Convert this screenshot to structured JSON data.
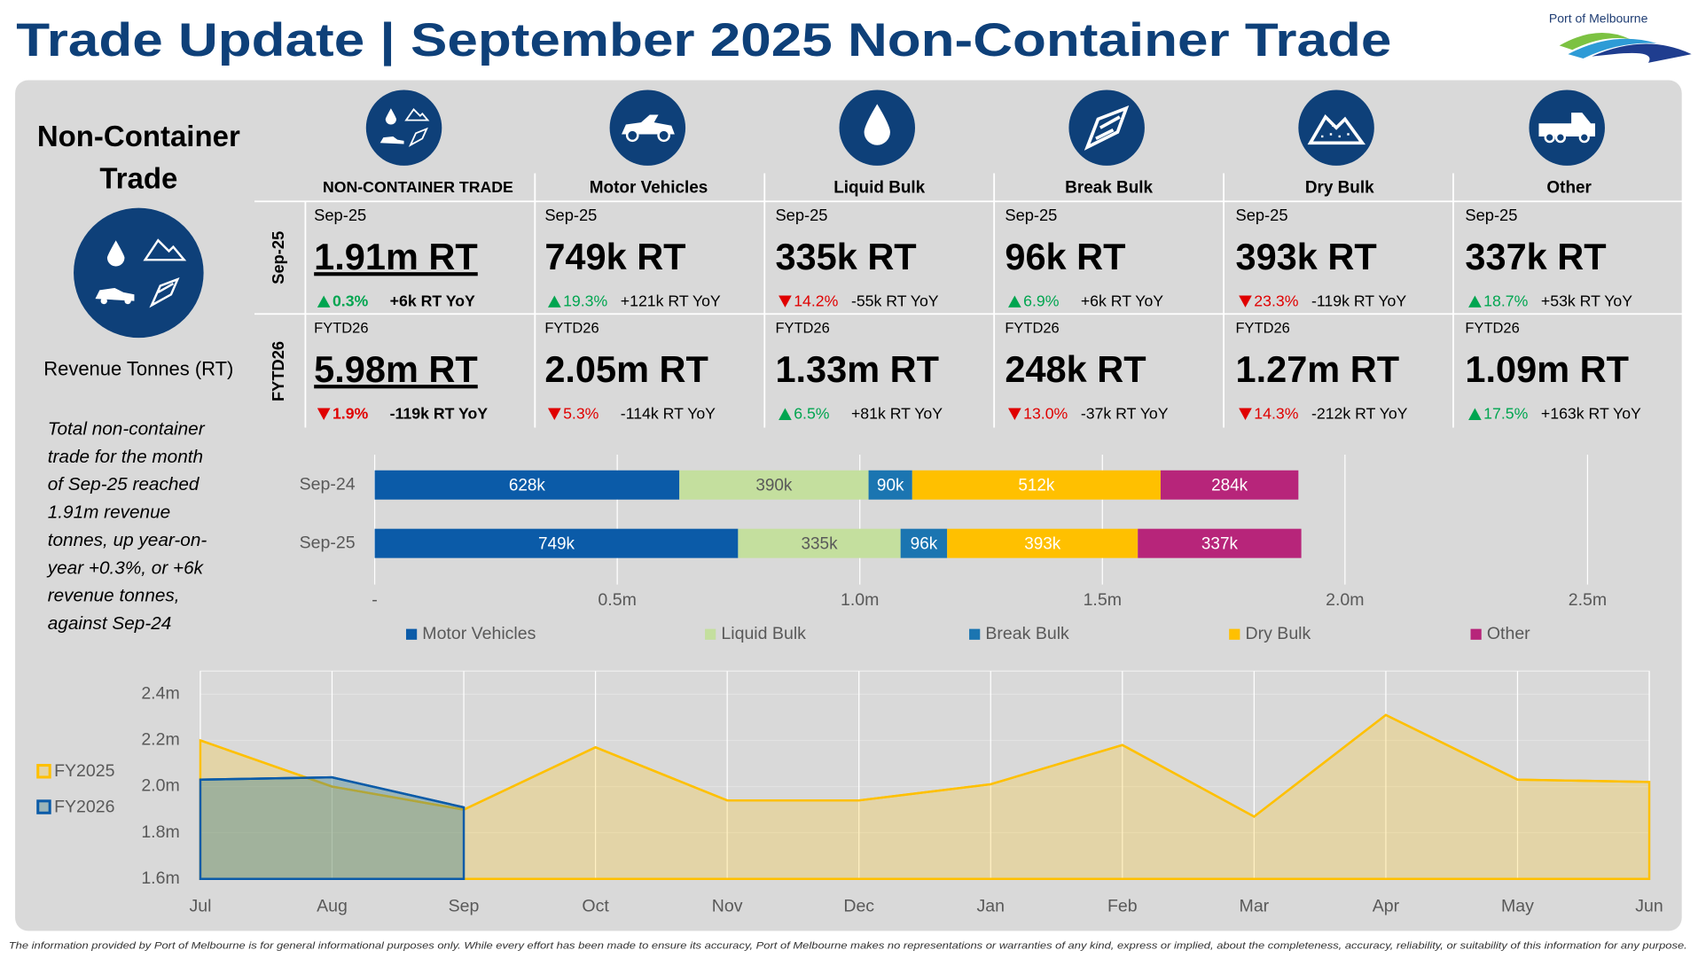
{
  "header": {
    "title": "Trade Update | September 2025 Non-Container Trade",
    "logo": "Port of Melbourne"
  },
  "summary": {
    "heading_lines": [
      "Non-Container",
      "Trade"
    ],
    "unit": "Revenue Tonnes (RT)",
    "text_lines": [
      "Total non-container",
      "trade for the month",
      "of Sep-25 reached",
      "1.91m revenue",
      "tonnes, up year-on-",
      "year +0.3%, or +6k",
      "revenue tonnes,",
      "against Sep-24"
    ]
  },
  "row_labels": [
    "Sep-25",
    "FYTD26"
  ],
  "cards": [
    {
      "name": "NON-CONTAINER TRADE",
      "rows": [
        {
          "period": "Sep-25",
          "value": "1.91m RT",
          "direction": "up",
          "change": "0.3%",
          "yoy": "+6k RT YoY"
        },
        {
          "period": "FYTD26",
          "value": "5.98m RT",
          "direction": "down",
          "change": "1.9%",
          "yoy": "-119k RT YoY"
        }
      ]
    },
    {
      "name": "Motor Vehicles",
      "rows": [
        {
          "period": "Sep-25",
          "value": "749k RT",
          "direction": "up",
          "change": "19.3%",
          "yoy": "+121k RT YoY"
        },
        {
          "period": "FYTD26",
          "value": "2.05m RT",
          "direction": "down",
          "change": "5.3%",
          "yoy": "-114k RT YoY"
        }
      ]
    },
    {
      "name": "Liquid Bulk",
      "rows": [
        {
          "period": "Sep-25",
          "value": "335k RT",
          "direction": "down",
          "change": "14.2%",
          "yoy": "-55k RT YoY"
        },
        {
          "period": "FYTD26",
          "value": "1.33m RT",
          "direction": "up",
          "change": "6.5%",
          "yoy": "+81k RT YoY"
        }
      ]
    },
    {
      "name": "Break Bulk",
      "rows": [
        {
          "period": "Sep-25",
          "value": "96k RT",
          "direction": "up",
          "change": "6.9%",
          "yoy": "+6k RT YoY"
        },
        {
          "period": "FYTD26",
          "value": "248k RT",
          "direction": "down",
          "change": "13.0%",
          "yoy": "-37k RT YoY"
        }
      ]
    },
    {
      "name": "Dry Bulk",
      "rows": [
        {
          "period": "Sep-25",
          "value": "393k RT",
          "direction": "down",
          "change": "23.3%",
          "yoy": "-119k RT YoY"
        },
        {
          "period": "FYTD26",
          "value": "1.27m RT",
          "direction": "down",
          "change": "14.3%",
          "yoy": "-212k RT YoY"
        }
      ]
    },
    {
      "name": "Other",
      "rows": [
        {
          "period": "Sep-25",
          "value": "337k RT",
          "direction": "up",
          "change": "18.7%",
          "yoy": "+53k RT YoY"
        },
        {
          "period": "FYTD26",
          "value": "1.09m RT",
          "direction": "up",
          "change": "17.5%",
          "yoy": "+163k RT YoY"
        }
      ]
    }
  ],
  "chart_data": [
    {
      "type": "bar",
      "orientation": "horizontal",
      "stacked": true,
      "categories": [
        "Sep-24",
        "Sep-25"
      ],
      "series": [
        {
          "name": "Motor Vehicles",
          "color": "#0b5ba8",
          "label_color": "#ffffff",
          "values": [
            628000,
            749000
          ],
          "value_labels": [
            "628k",
            "749k"
          ]
        },
        {
          "name": "Liquid Bulk",
          "color": "#c4df9e",
          "label_color": "#595959",
          "values": [
            390000,
            335000
          ],
          "value_labels": [
            "390k",
            "335k"
          ]
        },
        {
          "name": "Break Bulk",
          "color": "#1b75b1",
          "label_color": "#ffffff",
          "values": [
            90000,
            96000
          ],
          "value_labels": [
            "90k",
            "96k"
          ]
        },
        {
          "name": "Dry Bulk",
          "color": "#ffc000",
          "label_color": "#ffffff",
          "values": [
            512000,
            393000
          ],
          "value_labels": [
            "512k",
            "393k"
          ]
        },
        {
          "name": "Other",
          "color": "#b7257a",
          "label_color": "#ffffff",
          "values": [
            284000,
            337000
          ],
          "value_labels": [
            "284k",
            "337k"
          ]
        }
      ],
      "xlim": [
        0,
        2500000
      ],
      "xticks": [
        {
          "value": 0,
          "label": "-"
        },
        {
          "value": 500000,
          "label": "0.5m"
        },
        {
          "value": 1000000,
          "label": "1.0m"
        },
        {
          "value": 1500000,
          "label": "1.5m"
        },
        {
          "value": 2000000,
          "label": "2.0m"
        },
        {
          "value": 2500000,
          "label": "2.5m"
        }
      ],
      "grid": true,
      "legend": "bottom"
    },
    {
      "type": "area",
      "categories": [
        "Jul",
        "Aug",
        "Sep",
        "Oct",
        "Nov",
        "Dec",
        "Jan",
        "Feb",
        "Mar",
        "Apr",
        "May",
        "Jun"
      ],
      "series": [
        {
          "name": "FY2025",
          "color": "#ffc000",
          "fill": "rgba(255,200,40,0.28)",
          "values": [
            2200000,
            2000000,
            1900000,
            2170000,
            1940000,
            1940000,
            2010000,
            2180000,
            1870000,
            2310000,
            2030000,
            2020000
          ]
        },
        {
          "name": "FY2026",
          "color": "#0b5ba8",
          "fill": "rgba(70,130,140,0.42)",
          "values": [
            2030000,
            2040000,
            1910000,
            null,
            null,
            null,
            null,
            null,
            null,
            null,
            null,
            null
          ]
        }
      ],
      "ylim": [
        1600000,
        2500000
      ],
      "yticks": [
        {
          "value": 1600000,
          "label": "1.6m"
        },
        {
          "value": 1800000,
          "label": "1.8m"
        },
        {
          "value": 2000000,
          "label": "2.0m"
        },
        {
          "value": 2200000,
          "label": "2.2m"
        },
        {
          "value": 2400000,
          "label": "2.4m"
        }
      ],
      "grid": true,
      "legend": "left"
    }
  ],
  "footer": "The information provided by Port of Melbourne is for general informational purposes only. While every effort has been made to ensure its accuracy, Port of Melbourne makes no representations or warranties of any kind, express or implied, about the completeness, accuracy, reliability, or suitability of this information for any purpose."
}
